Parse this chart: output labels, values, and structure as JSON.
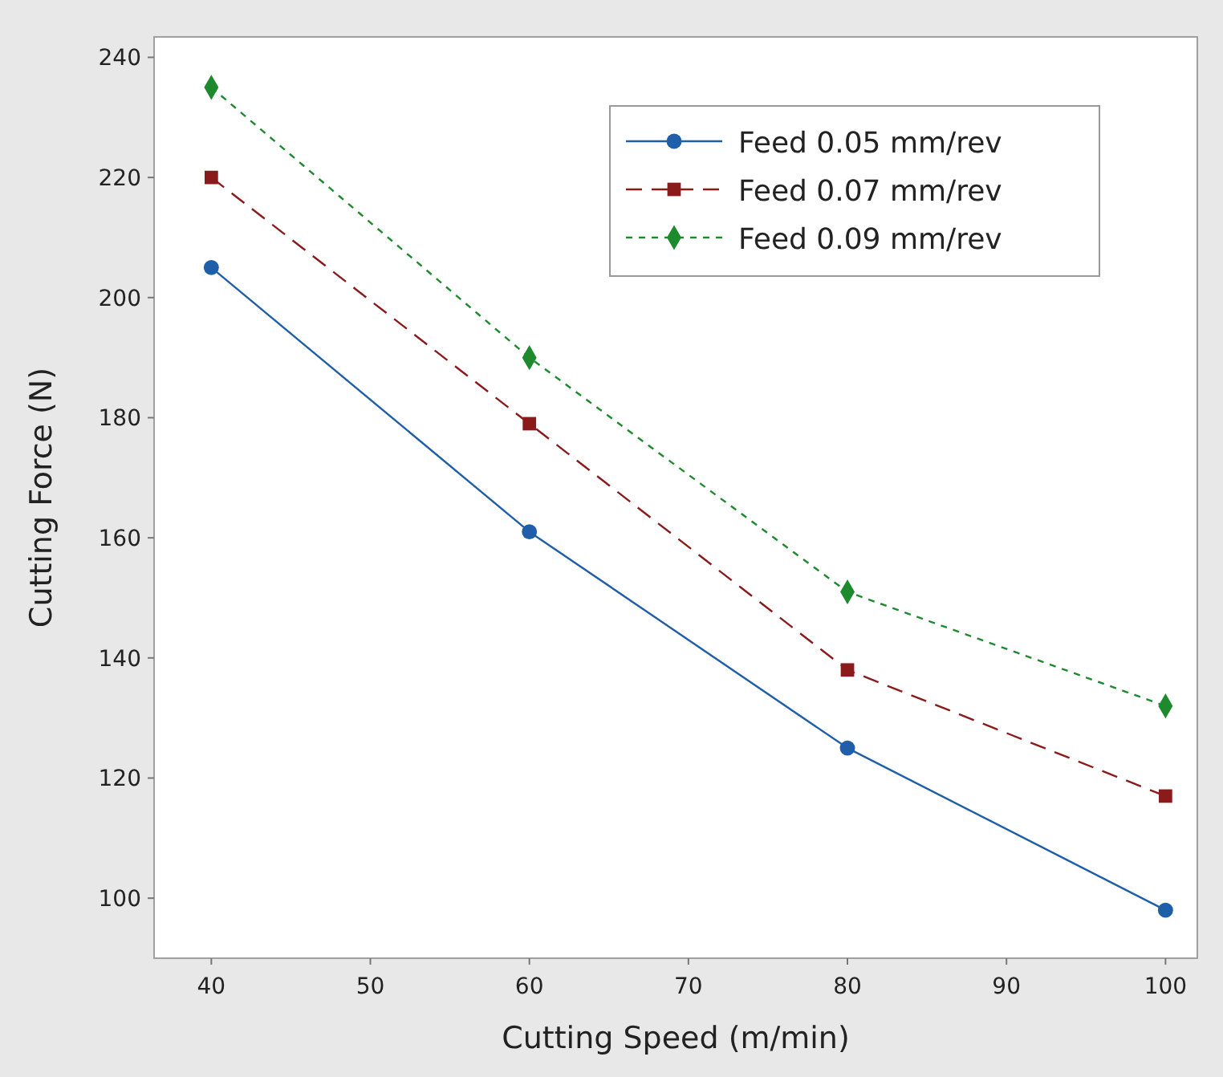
{
  "chart_data": {
    "type": "line",
    "xlabel": "Cutting Speed (m/min)",
    "ylabel": "Cutting Force (N)",
    "x": [
      40,
      60,
      80,
      100
    ],
    "xlim": [
      36.4,
      102
    ],
    "xticks": [
      40,
      50,
      60,
      70,
      80,
      90,
      100
    ],
    "ylim": [
      90,
      243.4
    ],
    "yticks": [
      100,
      120,
      140,
      160,
      180,
      200,
      220,
      240
    ],
    "grid": false,
    "legend": "top right",
    "series": [
      {
        "name": "Feed 0.05 mm/rev",
        "color": "#1f5ea8",
        "values": [
          205,
          161,
          125,
          98
        ],
        "marker": "circle",
        "line_style": "solid"
      },
      {
        "name": "Feed 0.07 mm/rev",
        "color": "#8b1a1a",
        "values": [
          220,
          179,
          138,
          117
        ],
        "marker": "square",
        "line_style": "dashed"
      },
      {
        "name": "Feed 0.09 mm/rev",
        "color": "#1e8a2e",
        "values": [
          235,
          190,
          151,
          132
        ],
        "marker": "diamond",
        "line_style": "dotted"
      }
    ]
  }
}
